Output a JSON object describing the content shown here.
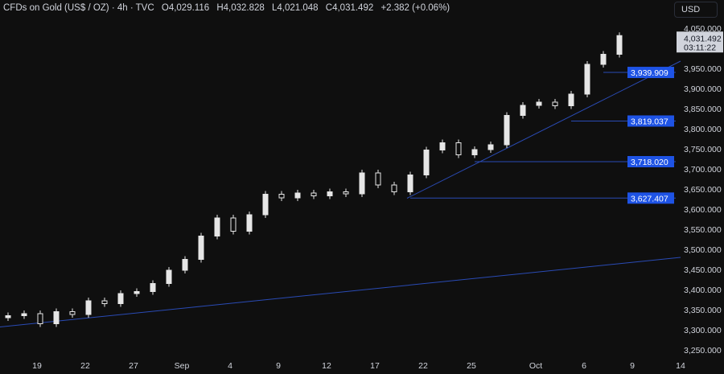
{
  "header": {
    "symbol": "CFDs on Gold (US$ / OZ) · 4h · TVC",
    "open": "O4,029.116",
    "high": "H4,032.828",
    "low": "L4,021.048",
    "close": "C4,031.492",
    "change": "+2.382 (+0.06%)"
  },
  "currency_button": "USD",
  "last_price": {
    "value": "4,031.492",
    "countdown": "03:11:22"
  },
  "chart_data": {
    "type": "candlestick",
    "title": "CFDs on Gold (US$ / OZ) · 4h · TVC",
    "ylim": [
      3250,
      4050
    ],
    "y_ticks": [
      "4,050.000",
      "3,950.000",
      "3,900.000",
      "3,850.000",
      "3,800.000",
      "3,750.000",
      "3,700.000",
      "3,650.000",
      "3,600.000",
      "3,550.000",
      "3,500.000",
      "3,450.000",
      "3,400.000",
      "3,350.000",
      "3,300.000",
      "3,250.000"
    ],
    "y_tick_values": [
      4050,
      3950,
      3900,
      3850,
      3800,
      3750,
      3700,
      3650,
      3600,
      3550,
      3500,
      3450,
      3400,
      3350,
      3300,
      3250
    ],
    "x_ticks": [
      {
        "label": "19",
        "date": "2025-08-19"
      },
      {
        "label": "22",
        "date": "2025-08-22"
      },
      {
        "label": "27",
        "date": "2025-08-27"
      },
      {
        "label": "Sep",
        "date": "2025-09-01"
      },
      {
        "label": "4",
        "date": "2025-09-04"
      },
      {
        "label": "9",
        "date": "2025-09-09"
      },
      {
        "label": "12",
        "date": "2025-09-12"
      },
      {
        "label": "17",
        "date": "2025-09-17"
      },
      {
        "label": "22",
        "date": "2025-09-22"
      },
      {
        "label": "25",
        "date": "2025-09-25"
      },
      {
        "label": "Oct",
        "date": "2025-10-01"
      },
      {
        "label": "6",
        "date": "2025-10-06"
      },
      {
        "label": "9",
        "date": "2025-10-09"
      },
      {
        "label": "14",
        "date": "2025-10-14"
      }
    ],
    "closes": [
      3335,
      3340,
      3315,
      3345,
      3338,
      3372,
      3365,
      3390,
      3395,
      3415,
      3448,
      3475,
      3533,
      3578,
      3545,
      3586,
      3637,
      3628,
      3640,
      3633,
      3643,
      3638,
      3690,
      3660,
      3643,
      3685,
      3747,
      3765,
      3735,
      3748,
      3760,
      3833,
      3858,
      3866,
      3857,
      3886,
      3960,
      3985,
      4031.492
    ],
    "levels": [
      {
        "label": "3,939.909",
        "value": 3939.909
      },
      {
        "label": "3,819.037",
        "value": 3819.037
      },
      {
        "label": "3,718.020",
        "value": 3718.02
      },
      {
        "label": "3,627.407",
        "value": 3627.407
      }
    ],
    "trendlines": [
      {
        "from": {
          "date": "2025-08-12",
          "price": 3296
        },
        "to": {
          "date": "2025-10-14",
          "price": 3480
        }
      },
      {
        "from": {
          "date": "2025-09-19",
          "price": 3627
        },
        "to": {
          "date": "2025-10-14",
          "price": 3968
        }
      }
    ],
    "colors": {
      "background": "#0f0f0f",
      "candle": "#e6e6e6",
      "line": "#2a4bb5",
      "level_label": "#1e53e5",
      "last_price_label": "#d1d4dc"
    }
  }
}
